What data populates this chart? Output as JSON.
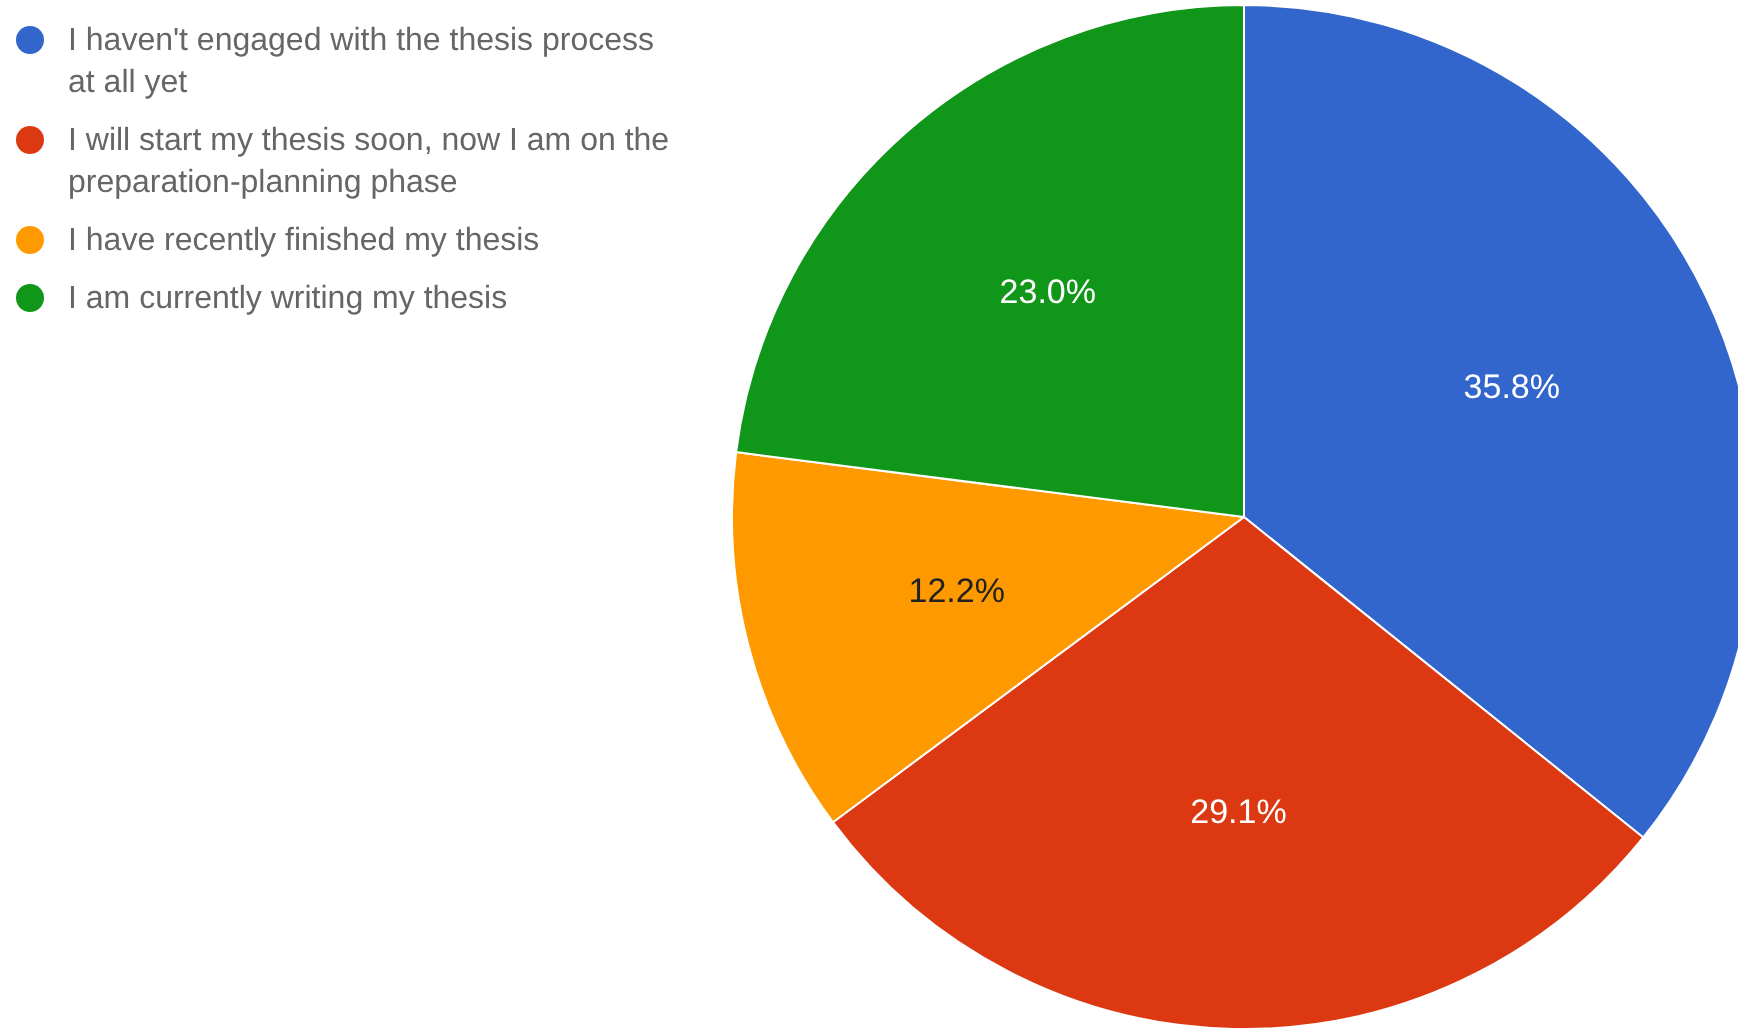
{
  "chart_data": {
    "type": "pie",
    "categories": [
      "I haven't engaged with the thesis process at all yet",
      "I will start my thesis soon, now I am on the preparation-planning phase",
      "I have recently finished my thesis",
      "I am currently writing my thesis"
    ],
    "values": [
      35.8,
      29.1,
      12.2,
      23.0
    ],
    "colors": [
      "#3366cc",
      "#dc3912",
      "#ff9900",
      "#109618"
    ],
    "value_labels": [
      "35.8%",
      "29.1%",
      "12.2%",
      "23.0%"
    ],
    "legend": "top left"
  }
}
